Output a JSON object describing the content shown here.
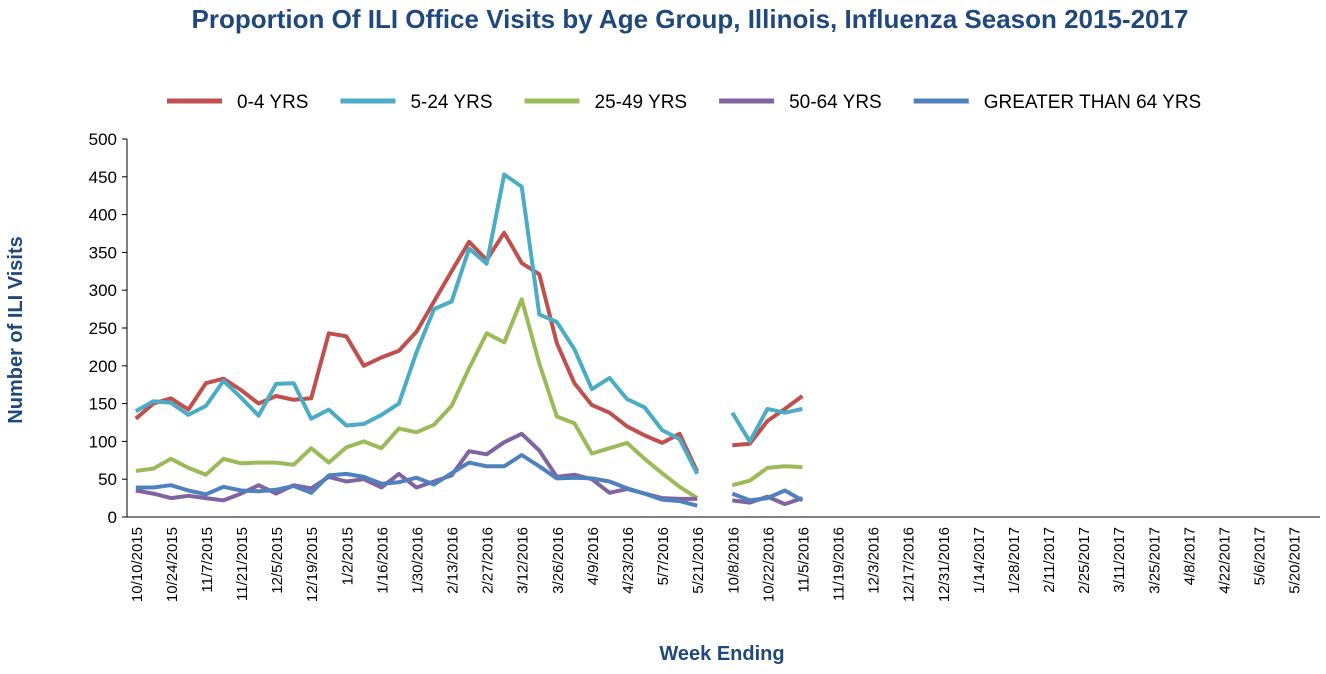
{
  "chart_data": {
    "type": "line",
    "title": "Proportion Of ILI Office Visits by Age Group, Illinois, Influenza Season 2015-2017",
    "x_label": "Week Ending",
    "y_label": "Number of ILI Visits",
    "categories": [
      "10/10/2015",
      null,
      "10/24/2015",
      null,
      "11/7/2015",
      null,
      "11/21/2015",
      null,
      "12/5/2015",
      null,
      "12/19/2015",
      null,
      "1/2/2015",
      null,
      "1/16/2016",
      null,
      "1/30/2016",
      null,
      "2/13/2016",
      null,
      "2/27/2016",
      null,
      "3/12/2016",
      null,
      "3/26/2016",
      null,
      "4/9/2016",
      null,
      "4/23/2016",
      null,
      "5/7/2016",
      null,
      "5/21/2016",
      null,
      "10/8/2016",
      null,
      "10/22/2016",
      null,
      "11/5/2016",
      null,
      "11/19/2016",
      null,
      "12/3/2016",
      null,
      "12/17/2016",
      null,
      "12/31/2016",
      null,
      "1/14/2017",
      null,
      "1/28/2017",
      null,
      "2/11/2017",
      null,
      "2/25/2017",
      null,
      "3/11/2017",
      null,
      "3/25/2017",
      null,
      "4/8/2017",
      null,
      "4/22/2017",
      null,
      "5/6/2017",
      null,
      "5/20/2017",
      null
    ],
    "series": [
      {
        "name": "0-4 YRS",
        "color": "#c0504d",
        "values": [
          130,
          150,
          157,
          142,
          177,
          183,
          168,
          150,
          160,
          155,
          157,
          243,
          239,
          200,
          211,
          220,
          245,
          285,
          325,
          364,
          340,
          376,
          336,
          321,
          230,
          177,
          148,
          138,
          120,
          108,
          98,
          110,
          60,
          null,
          95,
          97,
          127,
          143,
          160,
          null,
          null,
          null,
          null,
          null,
          null,
          null,
          null,
          null,
          null,
          null,
          null,
          null,
          null,
          null,
          null,
          null,
          null,
          null,
          null,
          null,
          null,
          null,
          null,
          null,
          null,
          null,
          null,
          null
        ]
      },
      {
        "name": "5-24 YRS",
        "color": "#4bacc6",
        "values": [
          140,
          153,
          151,
          135,
          147,
          180,
          158,
          134,
          176,
          177,
          130,
          142,
          121,
          123,
          135,
          150,
          218,
          275,
          285,
          355,
          335,
          453,
          437,
          268,
          258,
          222,
          169,
          184,
          156,
          145,
          115,
          103,
          57,
          null,
          138,
          100,
          143,
          138,
          143,
          null,
          null,
          null,
          null,
          null,
          null,
          null,
          null,
          null,
          null,
          null,
          null,
          null,
          null,
          null,
          null,
          null,
          null,
          null,
          null,
          null,
          null,
          null,
          null,
          null,
          null,
          null,
          null,
          null
        ]
      },
      {
        "name": "25-49 YRS",
        "color": "#9bbb59",
        "values": [
          61,
          64,
          77,
          65,
          56,
          77,
          71,
          72,
          72,
          69,
          91,
          72,
          92,
          100,
          91,
          117,
          112,
          122,
          147,
          197,
          243,
          231,
          288,
          203,
          133,
          124,
          84,
          91,
          98,
          77,
          58,
          40,
          25,
          null,
          42,
          48,
          65,
          67,
          66,
          null,
          null,
          null,
          null,
          null,
          null,
          null,
          null,
          null,
          null,
          null,
          null,
          null,
          null,
          null,
          null,
          null,
          null,
          null,
          null,
          null,
          null,
          null,
          null,
          null,
          null,
          null,
          null,
          null
        ]
      },
      {
        "name": "50-64 YRS",
        "color": "#8064a2",
        "values": [
          35,
          31,
          25,
          28,
          25,
          22,
          31,
          42,
          31,
          42,
          38,
          53,
          47,
          50,
          39,
          57,
          39,
          47,
          55,
          87,
          83,
          99,
          110,
          88,
          53,
          56,
          50,
          32,
          37,
          31,
          25,
          24,
          24,
          null,
          22,
          19,
          27,
          17,
          25,
          null,
          null,
          null,
          null,
          null,
          null,
          null,
          null,
          null,
          null,
          null,
          null,
          null,
          null,
          null,
          null,
          null,
          null,
          null,
          null,
          null,
          null,
          null,
          null,
          null,
          null,
          null,
          null,
          null
        ]
      },
      {
        "name": "GREATER THAN 64 YRS",
        "color": "#4f81bd",
        "values": [
          39,
          39,
          42,
          35,
          30,
          40,
          35,
          34,
          36,
          41,
          32,
          55,
          57,
          53,
          44,
          46,
          52,
          43,
          58,
          72,
          67,
          67,
          82,
          67,
          51,
          52,
          51,
          47,
          38,
          31,
          23,
          21,
          15,
          null,
          31,
          22,
          25,
          35,
          22,
          null,
          null,
          null,
          null,
          null,
          null,
          null,
          null,
          null,
          null,
          null,
          null,
          null,
          null,
          null,
          null,
          null,
          null,
          null,
          null,
          null,
          null,
          null,
          null,
          null,
          null,
          null,
          null,
          null
        ]
      }
    ],
    "ylim": [
      0,
      500
    ],
    "yticks": [
      0,
      50,
      100,
      150,
      200,
      250,
      300,
      350,
      400,
      450,
      500
    ],
    "grid": false,
    "legend": "top"
  }
}
